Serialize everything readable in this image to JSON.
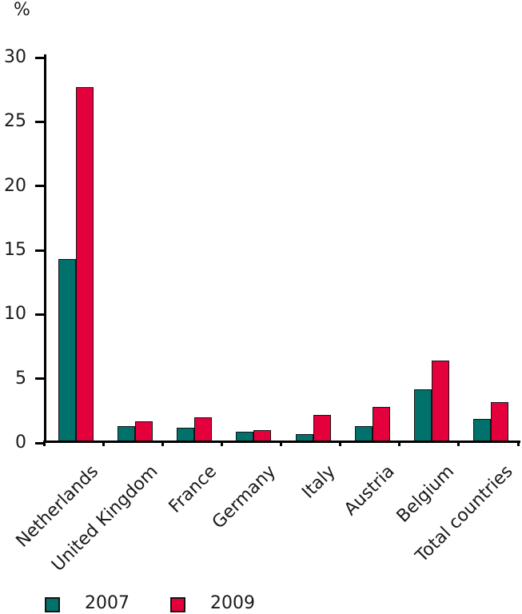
{
  "chart_data": {
    "type": "bar",
    "title": "",
    "xlabel": "",
    "ylabel": "%",
    "ylim": [
      0,
      30
    ],
    "yticks": [
      0,
      5,
      10,
      15,
      20,
      25,
      30
    ],
    "grid": false,
    "legend_position": "bottom-left",
    "categories": [
      "Netherlands",
      "United Kingdom",
      "France",
      "Germany",
      "Italy",
      "Austria",
      "Belgium",
      "Total countries"
    ],
    "series": [
      {
        "name": "2007",
        "color": "#00716B",
        "values": [
          14.1,
          1.1,
          1.0,
          0.7,
          0.5,
          1.1,
          4.0,
          1.7
        ]
      },
      {
        "name": "2009",
        "color": "#E3003D",
        "values": [
          27.5,
          1.5,
          1.8,
          0.8,
          2.0,
          2.6,
          6.2,
          3.0
        ]
      }
    ]
  },
  "colors": {
    "axis": "#000000",
    "text": "#1a1a1a",
    "bar_outline": "#141414",
    "background": "#ffffff"
  }
}
